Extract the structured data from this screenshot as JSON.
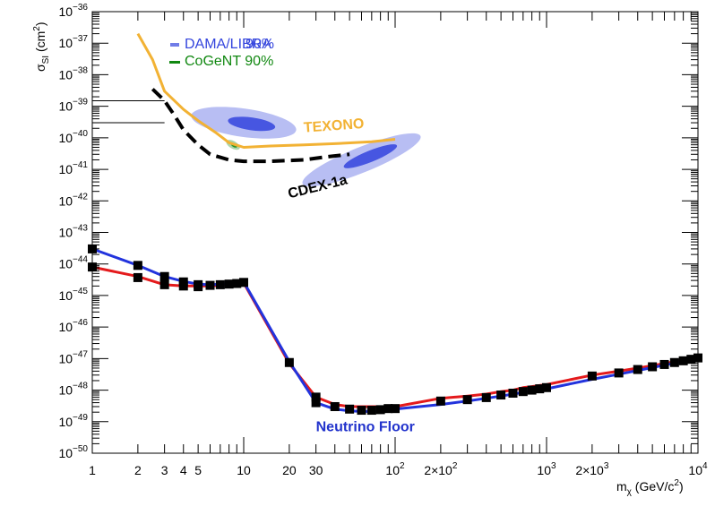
{
  "chart_data": {
    "type": "line",
    "xscale": "log",
    "yscale": "log",
    "xlim": [
      1,
      10000
    ],
    "ylim": [
      1e-50,
      1e-36
    ],
    "ylabel": "σSI (cm2)",
    "ylabel_main": "σ",
    "ylabel_sub": "SI",
    "ylabel_unit_pre": " (cm",
    "ylabel_unit_sup": "2",
    "ylabel_unit_post": ")",
    "xlabel": "mχ (GeV/c2)",
    "xlabel_main": "m",
    "xlabel_sub": "χ",
    "xlabel_unit_pre": " (GeV/c",
    "xlabel_unit_sup": "2",
    "xlabel_unit_post": ")",
    "x_ticks": [
      {
        "value": 1,
        "label": "1"
      },
      {
        "value": 2,
        "label": "2"
      },
      {
        "value": 3,
        "label": "3"
      },
      {
        "value": 4,
        "label": "4"
      },
      {
        "value": 5,
        "label": "5"
      },
      {
        "value": 10,
        "label": "10"
      },
      {
        "value": 20,
        "label": "20"
      },
      {
        "value": 30,
        "label": "30"
      },
      {
        "value": 100,
        "label": "10",
        "sup": "2"
      },
      {
        "value": 200,
        "label": "2×10",
        "sup": "2"
      },
      {
        "value": 1000,
        "label": "10",
        "sup": "3"
      },
      {
        "value": 2000,
        "label": "2×10",
        "sup": "3"
      },
      {
        "value": 10000,
        "label": "10",
        "sup": "4"
      }
    ],
    "y_ticks": [
      {
        "value": 1e-36,
        "label": "10",
        "sup": "−36"
      },
      {
        "value": 1e-37,
        "label": "10",
        "sup": "−37"
      },
      {
        "value": 1e-38,
        "label": "10",
        "sup": "−38"
      },
      {
        "value": 1e-39,
        "label": "10",
        "sup": "−39"
      },
      {
        "value": 1e-40,
        "label": "10",
        "sup": "−40"
      },
      {
        "value": 1e-41,
        "label": "10",
        "sup": "−41"
      },
      {
        "value": 1e-42,
        "label": "10",
        "sup": "−42"
      },
      {
        "value": 1e-43,
        "label": "10",
        "sup": "−43"
      },
      {
        "value": 1e-44,
        "label": "10",
        "sup": "−44"
      },
      {
        "value": 1e-45,
        "label": "10",
        "sup": "−45"
      },
      {
        "value": 1e-46,
        "label": "10",
        "sup": "−46"
      },
      {
        "value": 1e-47,
        "label": "10",
        "sup": "−47"
      },
      {
        "value": 1e-48,
        "label": "10",
        "sup": "−48"
      },
      {
        "value": 1e-49,
        "label": "10",
        "sup": "−49"
      },
      {
        "value": 1e-50,
        "label": "10",
        "sup": "−50"
      }
    ],
    "legend": [
      {
        "label": "DAMA/LIBRA",
        "color": "#3344dd",
        "marker": "dots"
      },
      {
        "label": "90%",
        "color": "#3344dd",
        "marker": "none"
      },
      {
        "label": "CoGeNT 90%",
        "color": "#118811",
        "marker": "bar"
      }
    ],
    "annotations": [
      {
        "text": "TEXONO",
        "x": 25,
        "y": 1.5e-40,
        "color": "#f2b234",
        "rotate": -4
      },
      {
        "text": "CDEX-1a",
        "x": 20,
        "y": 1.2e-42,
        "color": "#000000",
        "rotate": -14
      },
      {
        "text": "Neutrino Floor",
        "x": 30,
        "y": 5e-50,
        "color": "#2233cc",
        "rotate": 0
      }
    ],
    "series": [
      {
        "name": "TEXONO",
        "color": "#f2b234",
        "style": "solid",
        "points": [
          [
            2.0,
            2e-37
          ],
          [
            2.5,
            3e-38
          ],
          [
            3.0,
            3e-39
          ],
          [
            4.0,
            8e-40
          ],
          [
            5.0,
            3.5e-40
          ],
          [
            6.5,
            1.5e-40
          ],
          [
            8.0,
            7e-41
          ],
          [
            10,
            5e-41
          ],
          [
            15,
            5.5e-41
          ],
          [
            25,
            6e-41
          ],
          [
            40,
            6.5e-41
          ],
          [
            70,
            7.5e-41
          ],
          [
            100,
            9e-41
          ]
        ]
      },
      {
        "name": "CDEX-1a",
        "color": "#000000",
        "style": "dashed",
        "points": [
          [
            2.5,
            3.5e-39
          ],
          [
            3.0,
            1.5e-39
          ],
          [
            3.5,
            5e-40
          ],
          [
            4.0,
            1.8e-40
          ],
          [
            5.0,
            6e-41
          ],
          [
            6.0,
            3e-41
          ],
          [
            8.0,
            2e-41
          ],
          [
            10,
            1.8e-41
          ],
          [
            15,
            1.8e-41
          ],
          [
            25,
            2e-41
          ],
          [
            35,
            2.5e-41
          ],
          [
            50,
            3e-41
          ]
        ]
      },
      {
        "name": "Neutrino Floor",
        "color": "#e41a1c",
        "style": "solid",
        "points": [
          [
            1,
            8e-45
          ],
          [
            2,
            4e-45
          ],
          [
            3,
            2.2e-45
          ],
          [
            4,
            2e-45
          ],
          [
            5,
            2e-45
          ],
          [
            6,
            2e-45
          ],
          [
            7,
            2.1e-45
          ],
          [
            8,
            2.3e-45
          ],
          [
            9,
            2.4e-45
          ],
          [
            10,
            2.5e-45
          ],
          [
            20,
            7e-48
          ],
          [
            30,
            6e-49
          ],
          [
            40,
            3.5e-49
          ],
          [
            50,
            3e-49
          ],
          [
            60,
            3e-49
          ],
          [
            70,
            3e-49
          ],
          [
            80,
            3e-49
          ],
          [
            90,
            3e-49
          ],
          [
            100,
            3e-49
          ],
          [
            200,
            5.5e-49
          ],
          [
            300,
            6.5e-49
          ],
          [
            400,
            7.5e-49
          ],
          [
            500,
            9e-49
          ],
          [
            600,
            1e-48
          ],
          [
            700,
            1.2e-48
          ],
          [
            800,
            1.3e-48
          ],
          [
            900,
            1.4e-48
          ],
          [
            1000,
            1.5e-48
          ],
          [
            2000,
            3e-48
          ],
          [
            3000,
            4e-48
          ],
          [
            4000,
            5e-48
          ],
          [
            5000,
            6e-48
          ],
          [
            6000,
            7e-48
          ],
          [
            7000,
            8e-48
          ],
          [
            8000,
            9e-48
          ],
          [
            9000,
            1e-47
          ],
          [
            10000,
            1.1e-47
          ]
        ]
      },
      {
        "name": "Neutrino Floor",
        "color": "#2233dd",
        "style": "solid",
        "points": [
          [
            1,
            3e-44
          ],
          [
            2,
            9e-45
          ],
          [
            3,
            4e-45
          ],
          [
            4,
            2.8e-45
          ],
          [
            5,
            2.3e-45
          ],
          [
            6,
            2.2e-45
          ],
          [
            7,
            2.3e-45
          ],
          [
            8,
            2.4e-45
          ],
          [
            9,
            2.6e-45
          ],
          [
            10,
            2.7e-45
          ],
          [
            20,
            8e-48
          ],
          [
            30,
            4e-49
          ],
          [
            40,
            2.5e-49
          ],
          [
            50,
            2.2e-49
          ],
          [
            60,
            2.1e-49
          ],
          [
            70,
            2.1e-49
          ],
          [
            80,
            2.2e-49
          ],
          [
            90,
            2.3e-49
          ],
          [
            100,
            2.5e-49
          ],
          [
            200,
            3.5e-49
          ],
          [
            300,
            4.5e-49
          ],
          [
            400,
            5.5e-49
          ],
          [
            500,
            6.5e-49
          ],
          [
            600,
            7.5e-49
          ],
          [
            700,
            8.5e-49
          ],
          [
            800,
            9.5e-49
          ],
          [
            900,
            1e-48
          ],
          [
            1000,
            1.1e-48
          ],
          [
            2000,
            2.2e-48
          ],
          [
            3000,
            3.2e-48
          ],
          [
            4000,
            4.2e-48
          ],
          [
            5000,
            5.2e-48
          ],
          [
            6000,
            6.2e-48
          ],
          [
            7000,
            7.2e-48
          ],
          [
            8000,
            8.2e-48
          ],
          [
            9000,
            9.2e-48
          ],
          [
            10000,
            1e-47
          ]
        ]
      }
    ],
    "markers": [
      [
        1,
        3e-44
      ],
      [
        1,
        8e-45
      ],
      [
        2,
        9e-45
      ],
      [
        2,
        3.7e-45
      ],
      [
        3,
        4e-45
      ],
      [
        3,
        2.2e-45
      ],
      [
        4,
        2.7e-45
      ],
      [
        4,
        2e-45
      ],
      [
        5,
        2.2e-45
      ],
      [
        5,
        1.9e-45
      ],
      [
        6,
        2.1e-45
      ],
      [
        7,
        2.2e-45
      ],
      [
        8,
        2.3e-45
      ],
      [
        9,
        2.4e-45
      ],
      [
        10,
        2.6e-45
      ],
      [
        20,
        7.5e-48
      ],
      [
        30,
        6e-49
      ],
      [
        30,
        4e-49
      ],
      [
        40,
        3e-49
      ],
      [
        50,
        2.5e-49
      ],
      [
        60,
        2.3e-49
      ],
      [
        70,
        2.3e-49
      ],
      [
        80,
        2.4e-49
      ],
      [
        90,
        2.6e-49
      ],
      [
        100,
        2.6e-49
      ],
      [
        200,
        4.5e-49
      ],
      [
        300,
        5e-49
      ],
      [
        400,
        5.8e-49
      ],
      [
        500,
        7e-49
      ],
      [
        600,
        8e-49
      ],
      [
        700,
        9e-49
      ],
      [
        800,
        1e-48
      ],
      [
        900,
        1.1e-48
      ],
      [
        1000,
        1.2e-48
      ],
      [
        2000,
        2.8e-48
      ],
      [
        3000,
        3.5e-48
      ],
      [
        4000,
        4.5e-48
      ],
      [
        5000,
        5.5e-48
      ],
      [
        6000,
        6.5e-48
      ],
      [
        7000,
        7.5e-48
      ],
      [
        8000,
        8.5e-48
      ],
      [
        9000,
        9.5e-48
      ],
      [
        10000,
        1.05e-47
      ]
    ],
    "regions": [
      {
        "name": "DAMA/LIBRA",
        "color": "#3344dd",
        "x": 10,
        "y": 3e-40,
        "rx_decades": 0.35,
        "ry_decades": 0.45,
        "rotate": 8
      },
      {
        "name": "DAMA/LIBRA",
        "color": "#3344dd",
        "x": 60,
        "y": 2e-41,
        "rx_decades": 0.42,
        "ry_decades": 0.4,
        "rotate": -22
      },
      {
        "name": "CoGeNT",
        "color": "#118811",
        "x": 8.5,
        "y": 6e-41,
        "rx_decades": 0.05,
        "ry_decades": 0.12,
        "rotate": 30
      }
    ],
    "reference_lines": [
      {
        "x1": 1,
        "x2": 3,
        "y": 1.5e-39
      },
      {
        "x1": 1,
        "x2": 3,
        "y": 3e-40
      }
    ],
    "grid": false,
    "legend_position": "top-left"
  }
}
